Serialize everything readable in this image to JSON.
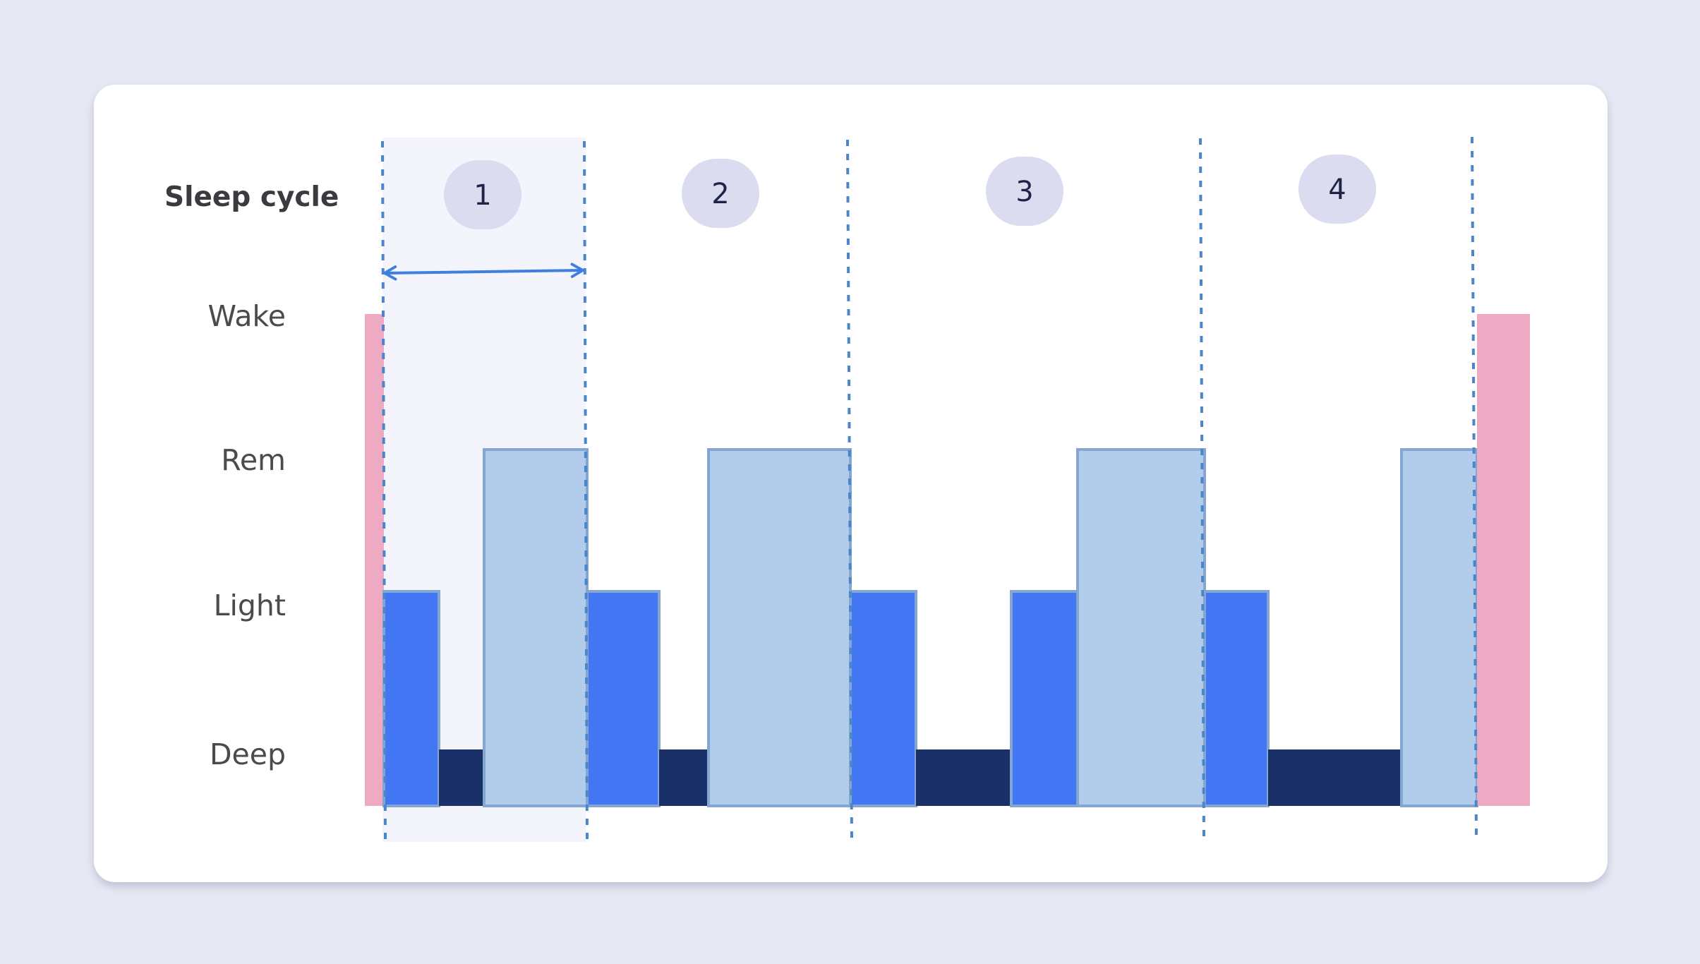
{
  "title": "Sleep cycle",
  "levels": [
    "Wake",
    "Rem",
    "Light",
    "Deep"
  ],
  "cycles": [
    "1",
    "2",
    "3",
    "4"
  ],
  "colors": {
    "outer_background": "#e6e8f4",
    "card": "#ffffff",
    "highlight": "#f3f4fc",
    "wake": "#eeaac3",
    "rem": "#b2cceb",
    "light": "#4276f2",
    "deep": "#1a3068",
    "bar_outline": "#86a6d2",
    "divider": "#4a86c8",
    "arrow": "#3f7fe0",
    "badge": "#dcdcf0"
  },
  "hypnogram": [
    {
      "stage": "wake"
    },
    {
      "stage": "light"
    },
    {
      "stage": "deep"
    },
    {
      "stage": "rem"
    },
    {
      "stage": "light"
    },
    {
      "stage": "deep"
    },
    {
      "stage": "rem"
    },
    {
      "stage": "light"
    },
    {
      "stage": "deep"
    },
    {
      "stage": "light"
    },
    {
      "stage": "rem"
    },
    {
      "stage": "light"
    },
    {
      "stage": "deep"
    },
    {
      "stage": "rem"
    },
    {
      "stage": "wake"
    }
  ]
}
